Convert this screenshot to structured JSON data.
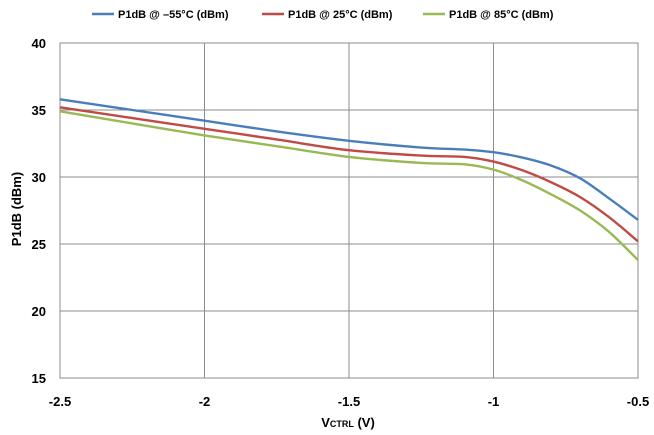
{
  "chart_data": {
    "type": "line",
    "xlabel": "VCTRL (V)",
    "xlabel_main": "V",
    "xlabel_sub": "CTRL",
    "xlabel_unit": " (V)",
    "ylabel": "P1dB (dBm)",
    "xlim": [
      -2.5,
      -0.5
    ],
    "ylim": [
      15,
      40
    ],
    "xticks": [
      -2.5,
      -2,
      -1.5,
      -1,
      -0.5
    ],
    "xtick_labels": [
      "-2.5",
      "-2",
      "-1.5",
      "-1",
      "-0.5"
    ],
    "yticks": [
      15,
      20,
      25,
      30,
      35,
      40
    ],
    "ytick_labels": [
      "15",
      "20",
      "25",
      "30",
      "35",
      "40"
    ],
    "grid": true,
    "legend_position": "top",
    "series": [
      {
        "name": "P1dB @ –55°C (dBm)",
        "color": "#4a7ebb",
        "x": [
          -2.5,
          -2.25,
          -2.0,
          -1.75,
          -1.5,
          -1.25,
          -1.1,
          -1.0,
          -0.9,
          -0.8,
          -0.7,
          -0.6,
          -0.5
        ],
        "y": [
          35.8,
          35.0,
          34.2,
          33.4,
          32.7,
          32.2,
          32.05,
          31.85,
          31.45,
          30.85,
          29.9,
          28.4,
          26.8
        ]
      },
      {
        "name": "P1dB @ 25°C (dBm)",
        "color": "#be4b48",
        "x": [
          -2.5,
          -2.25,
          -2.0,
          -1.75,
          -1.5,
          -1.25,
          -1.1,
          -1.0,
          -0.9,
          -0.8,
          -0.7,
          -0.6,
          -0.5
        ],
        "y": [
          35.2,
          34.4,
          33.6,
          32.8,
          32.0,
          31.6,
          31.5,
          31.15,
          30.5,
          29.6,
          28.5,
          27.0,
          25.2
        ]
      },
      {
        "name": "P1dB @ 85°C (dBm)",
        "color": "#98b954",
        "x": [
          -2.5,
          -2.25,
          -2.0,
          -1.75,
          -1.5,
          -1.25,
          -1.1,
          -1.0,
          -0.9,
          -0.8,
          -0.7,
          -0.6,
          -0.5
        ],
        "y": [
          34.9,
          34.0,
          33.1,
          32.3,
          31.5,
          31.05,
          30.95,
          30.55,
          29.75,
          28.7,
          27.5,
          25.9,
          23.8
        ]
      }
    ]
  }
}
